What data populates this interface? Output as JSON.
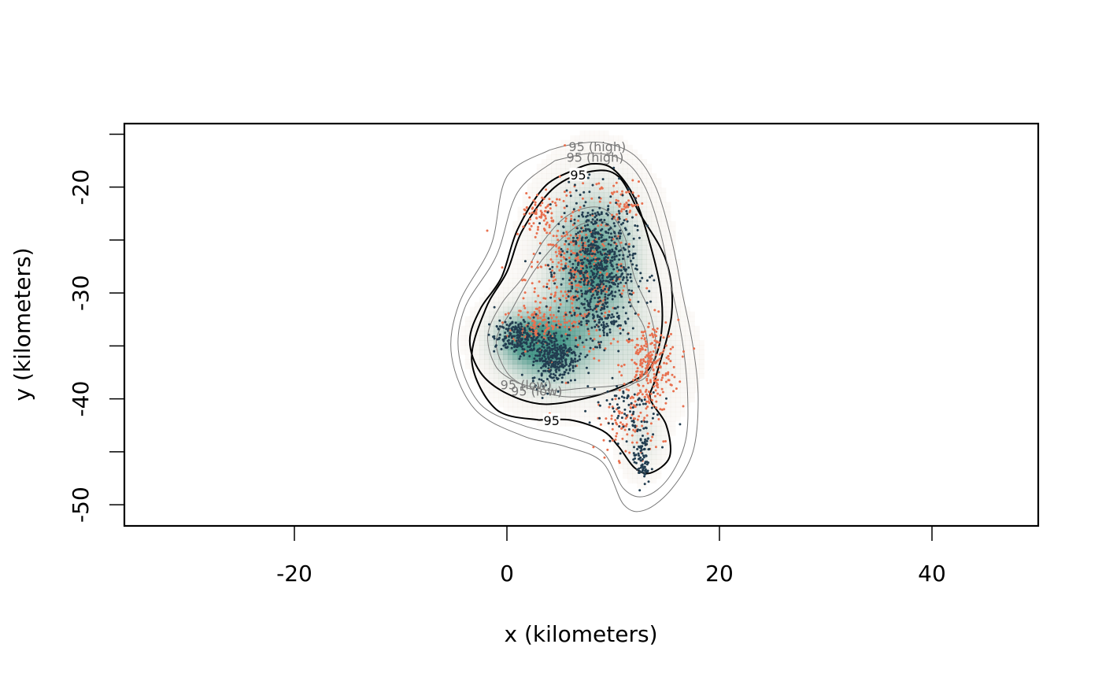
{
  "chart_data": {
    "type": "scatter",
    "title": "",
    "xlabel": "x (kilometers)",
    "ylabel": "y (kilometers)",
    "xlim": [
      -36,
      50
    ],
    "ylim": [
      -52,
      -14
    ],
    "x_ticks": [
      -20,
      0,
      20,
      40
    ],
    "y_ticks": [
      -50,
      -40,
      -30,
      -20
    ],
    "grid": false,
    "legend": "none",
    "colors": {
      "density_high": "#3a8f80",
      "density_low": "#f2e6dc",
      "points_a": "#223d50",
      "points_b": "#e8704f",
      "contour_estimate": "#000000",
      "contour_ci": "#777777"
    },
    "density": {
      "description_hidden": true,
      "modes": [
        {
          "x": 8.0,
          "y": -27.5,
          "sx": 2.8,
          "sy": 4.5,
          "w": 1.0
        },
        {
          "x": 4.0,
          "y": -35.5,
          "sx": 2.8,
          "sy": 2.6,
          "w": 0.85
        },
        {
          "x": 1.0,
          "y": -34.5,
          "sx": 2.0,
          "sy": 1.8,
          "w": 0.6
        },
        {
          "x": 12.5,
          "y": -36.5,
          "sx": 2.6,
          "sy": 3.0,
          "w": 0.25
        },
        {
          "x": 12.5,
          "y": -44.0,
          "sx": 1.2,
          "sy": 2.0,
          "w": 0.25
        }
      ]
    },
    "series": [
      {
        "color_key": "points_a",
        "clusters": [
          {
            "x": 8.5,
            "y": -27.5,
            "sx": 1.8,
            "sy": 3.2,
            "n": 700
          },
          {
            "x": 4.5,
            "y": -36.0,
            "sx": 1.1,
            "sy": 1.3,
            "n": 320
          },
          {
            "x": 1.0,
            "y": -34.2,
            "sx": 1.1,
            "sy": 0.8,
            "n": 200
          },
          {
            "x": 11.0,
            "y": -41.0,
            "sx": 1.6,
            "sy": 1.4,
            "n": 80
          },
          {
            "x": 12.7,
            "y": -45.5,
            "sx": 0.4,
            "sy": 1.4,
            "n": 90
          },
          {
            "x": 9.0,
            "y": -32.5,
            "sx": 1.0,
            "sy": 0.8,
            "n": 60
          }
        ]
      },
      {
        "color_key": "points_b",
        "clusters": [
          {
            "x": 6.5,
            "y": -28.5,
            "sx": 2.4,
            "sy": 3.8,
            "n": 420
          },
          {
            "x": 13.5,
            "y": -37.0,
            "sx": 1.3,
            "sy": 2.2,
            "n": 260
          },
          {
            "x": 2.5,
            "y": -33.0,
            "sx": 1.0,
            "sy": 0.9,
            "n": 90
          },
          {
            "x": 3.0,
            "y": -22.5,
            "sx": 0.7,
            "sy": 1.0,
            "n": 60
          },
          {
            "x": 11.0,
            "y": -21.5,
            "sx": 1.0,
            "sy": 1.0,
            "n": 50
          },
          {
            "x": 11.5,
            "y": -42.5,
            "sx": 1.5,
            "sy": 1.6,
            "n": 80
          }
        ]
      }
    ],
    "contours": [
      {
        "kind": "estimate",
        "label": "95",
        "label_at": [
          6.7,
          -19.0
        ],
        "path": [
          [
            6.0,
            -18.5
          ],
          [
            3.5,
            -20.0
          ],
          [
            1.0,
            -24.0
          ],
          [
            -0.5,
            -28.5
          ],
          [
            -2.5,
            -31.5
          ],
          [
            -3.5,
            -34.5
          ],
          [
            -2.5,
            -37.5
          ],
          [
            0.0,
            -39.5
          ],
          [
            3.5,
            -40.5
          ],
          [
            8.0,
            -39.8
          ],
          [
            11.5,
            -38.5
          ],
          [
            13.5,
            -37.0
          ],
          [
            14.5,
            -34.0
          ],
          [
            14.5,
            -30.0
          ],
          [
            13.5,
            -25.5
          ],
          [
            12.0,
            -21.0
          ],
          [
            10.0,
            -18.3
          ],
          [
            8.0,
            -17.8
          ],
          [
            6.0,
            -18.5
          ]
        ]
      },
      {
        "kind": "estimate",
        "label": "95",
        "label_at": [
          4.2,
          -42.2
        ],
        "path": [
          [
            3.0,
            -42.0
          ],
          [
            -1.0,
            -41.0
          ],
          [
            -3.3,
            -36.5
          ],
          [
            -2.0,
            -31.5
          ],
          [
            0.0,
            -28.0
          ],
          [
            1.5,
            -24.0
          ],
          [
            4.5,
            -20.0
          ],
          [
            8.0,
            -18.5
          ],
          [
            10.5,
            -19.0
          ],
          [
            12.5,
            -22.5
          ],
          [
            15.0,
            -27.0
          ],
          [
            15.5,
            -32.0
          ],
          [
            14.0,
            -38.0
          ],
          [
            13.5,
            -40.0
          ],
          [
            15.0,
            -42.5
          ],
          [
            15.3,
            -45.5
          ],
          [
            13.5,
            -47.0
          ],
          [
            12.0,
            -46.5
          ],
          [
            10.5,
            -44.5
          ],
          [
            9.0,
            -43.0
          ],
          [
            6.0,
            -42.0
          ],
          [
            3.0,
            -42.0
          ]
        ]
      },
      {
        "kind": "interval",
        "label": "95 (high)",
        "label_at": [
          8.5,
          -16.3
        ],
        "path": [
          [
            4.0,
            -16.5
          ],
          [
            0.0,
            -19.0
          ],
          [
            -1.5,
            -25.5
          ],
          [
            -4.5,
            -31.0
          ],
          [
            -5.2,
            -36.0
          ],
          [
            -3.0,
            -41.0
          ],
          [
            1.5,
            -43.5
          ],
          [
            5.5,
            -44.5
          ],
          [
            9.0,
            -46.0
          ],
          [
            11.0,
            -50.0
          ],
          [
            13.0,
            -50.5
          ],
          [
            15.5,
            -48.5
          ],
          [
            17.5,
            -45.0
          ],
          [
            18.0,
            -40.0
          ],
          [
            17.5,
            -35.0
          ],
          [
            16.5,
            -30.0
          ],
          [
            15.5,
            -25.0
          ],
          [
            14.0,
            -20.0
          ],
          [
            12.0,
            -17.0
          ],
          [
            9.0,
            -15.8
          ],
          [
            6.0,
            -16.0
          ],
          [
            4.0,
            -16.5
          ]
        ]
      },
      {
        "kind": "interval",
        "label": "95 (high)",
        "label_at": [
          8.3,
          -17.3
        ],
        "path": [
          [
            4.5,
            -17.5
          ],
          [
            1.0,
            -20.5
          ],
          [
            -1.0,
            -26.5
          ],
          [
            -4.0,
            -31.5
          ],
          [
            -4.5,
            -36.0
          ],
          [
            -2.5,
            -40.5
          ],
          [
            1.5,
            -42.5
          ],
          [
            5.5,
            -43.5
          ],
          [
            9.0,
            -45.0
          ],
          [
            11.0,
            -48.5
          ],
          [
            13.0,
            -49.2
          ],
          [
            15.2,
            -47.5
          ],
          [
            16.8,
            -44.0
          ],
          [
            17.0,
            -39.5
          ],
          [
            16.5,
            -34.5
          ],
          [
            15.5,
            -29.5
          ],
          [
            14.5,
            -24.5
          ],
          [
            13.0,
            -20.0
          ],
          [
            11.0,
            -17.5
          ],
          [
            8.0,
            -16.8
          ],
          [
            4.5,
            -17.5
          ]
        ]
      },
      {
        "kind": "interval",
        "label": "95 (low)",
        "label_at": [
          1.8,
          -38.8
        ],
        "path": [
          [
            1.0,
            -38.5
          ],
          [
            -1.0,
            -37.0
          ],
          [
            -1.8,
            -34.0
          ],
          [
            -0.5,
            -31.0
          ],
          [
            1.5,
            -28.5
          ],
          [
            3.5,
            -25.0
          ],
          [
            6.0,
            -22.5
          ],
          [
            9.0,
            -22.0
          ],
          [
            11.0,
            -24.5
          ],
          [
            12.0,
            -28.5
          ],
          [
            13.5,
            -32.0
          ],
          [
            14.0,
            -35.5
          ],
          [
            13.0,
            -38.0
          ],
          [
            10.5,
            -38.7
          ],
          [
            7.0,
            -39.0
          ],
          [
            4.0,
            -39.2
          ],
          [
            1.0,
            -38.5
          ]
        ]
      },
      {
        "kind": "interval",
        "label": "95 (low)",
        "label_at": [
          2.8,
          -39.4
        ],
        "path": [
          [
            2.0,
            -39.0
          ],
          [
            0.0,
            -37.5
          ],
          [
            -1.0,
            -34.5
          ],
          [
            0.5,
            -31.5
          ],
          [
            2.5,
            -28.0
          ],
          [
            4.5,
            -25.5
          ],
          [
            7.0,
            -23.5
          ],
          [
            9.5,
            -23.5
          ],
          [
            11.0,
            -26.5
          ],
          [
            11.5,
            -30.5
          ],
          [
            13.0,
            -33.5
          ],
          [
            13.2,
            -36.8
          ],
          [
            12.0,
            -38.5
          ],
          [
            9.0,
            -39.5
          ],
          [
            5.5,
            -39.8
          ],
          [
            2.0,
            -39.0
          ]
        ]
      }
    ]
  }
}
